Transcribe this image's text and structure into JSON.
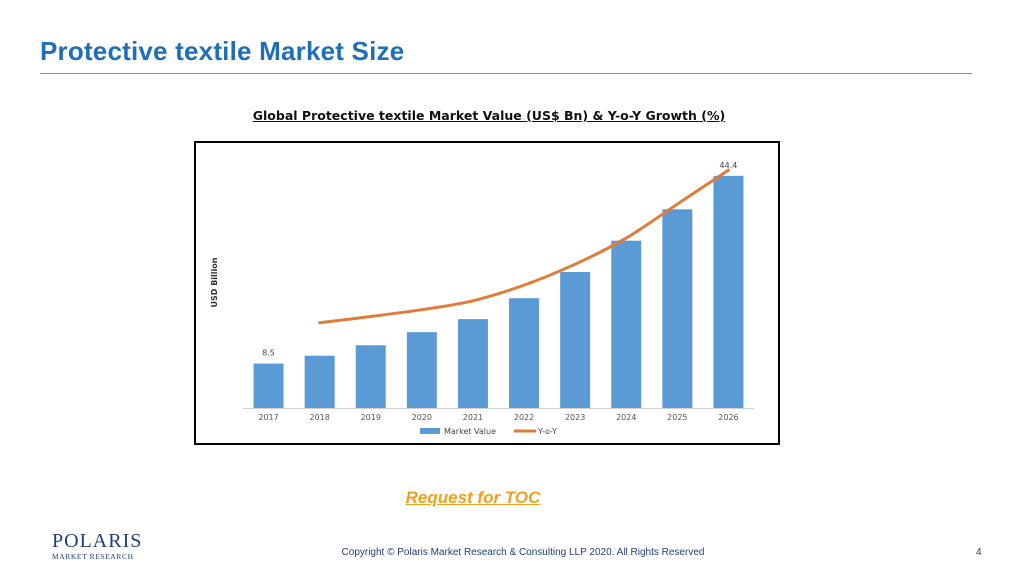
{
  "slide": {
    "title": "Protective textile Market Size",
    "toc_link": "Request for TOC",
    "copyright": "Copyright © Polaris Market Research & Consulting LLP 2020. All Rights Reserved",
    "page_number": "4",
    "logo": {
      "name": "POLARIS",
      "subtitle": "MARKET RESEARCH"
    }
  },
  "chart_data": {
    "type": "bar",
    "title": "Global Protective textile Market Value (US$ Bn) & Y-o-Y Growth (%)",
    "xlabel": "",
    "ylabel": "USD Billion",
    "categories": [
      "2017",
      "2018",
      "2019",
      "2020",
      "2021",
      "2022",
      "2023",
      "2024",
      "2025",
      "2026"
    ],
    "series": [
      {
        "name": "Market Value",
        "type": "bar",
        "color": "#5b9bd5",
        "values": [
          8.5,
          10,
          12,
          14.5,
          17,
          21,
          26,
          32,
          38,
          44.4
        ],
        "data_labels": [
          "8.5",
          "",
          "",
          "",
          "",
          "",
          "",
          "",
          "",
          "44.4"
        ]
      },
      {
        "name": "Y-o-Y",
        "type": "line",
        "color": "#e07b39",
        "values": [
          null,
          16.3,
          17.5,
          18.8,
          20.5,
          23.5,
          27.5,
          32.5,
          39,
          45.5
        ]
      }
    ],
    "ylim": [
      0,
      48
    ],
    "grid": false,
    "legend": "bottom-center"
  }
}
